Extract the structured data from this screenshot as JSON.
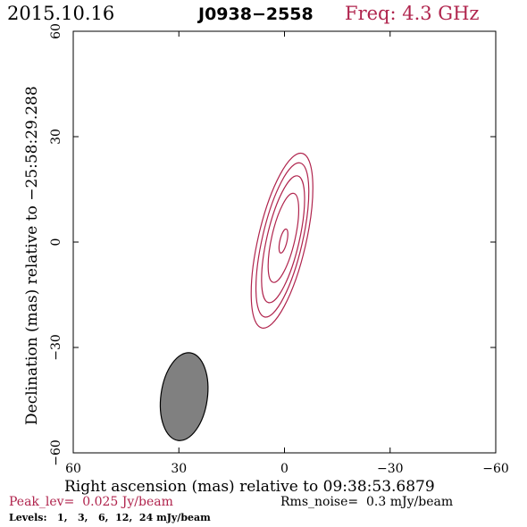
{
  "header": {
    "date": "2015.10.16",
    "source": "J0938−2558",
    "freq": "Freq: 4.3 GHz"
  },
  "footer": {
    "peak": "Peak_lev=  0.025 Jy/beam",
    "rms": "Rms_noise=  0.3 mJy/beam",
    "levels": "Levels:   1,   3,   6,  12,  24 mJy/beam"
  },
  "colors": {
    "contour": "#b0244d",
    "beam_fill": "#808080",
    "axis": "#000000",
    "freq_text": "#b0244d",
    "peak_text": "#b0244d"
  },
  "chart_data": {
    "type": "contour",
    "xlabel": "Right ascension (mas) relative to 09:38:53.6879",
    "ylabel": "Declination (mas) relative to −25:58:29.288",
    "xlim": [
      60,
      -60
    ],
    "ylim": [
      -60,
      60
    ],
    "x_ticks": [
      60,
      30,
      0,
      -30,
      -60
    ],
    "x_tick_labels": [
      "60",
      "30",
      "0",
      "−30",
      "−60"
    ],
    "y_ticks": [
      -60,
      -30,
      0,
      30,
      60
    ],
    "y_tick_labels": [
      "−60",
      "−30",
      "0",
      "30",
      "60"
    ],
    "levels_mJy": [
      1,
      3,
      6,
      12,
      24
    ],
    "peak_Jy_per_beam": 0.025,
    "rms_mJy_per_beam": 0.3,
    "contours": [
      {
        "level": 1,
        "cx": 0.7,
        "cy": 0.4,
        "rx": 6.8,
        "ry": 25.5,
        "angle_deg": 13
      },
      {
        "level": 3,
        "cx": 0.6,
        "cy": 0.6,
        "rx": 5.7,
        "ry": 22.5,
        "angle_deg": 13
      },
      {
        "level": 6,
        "cx": 0.4,
        "cy": 0.8,
        "rx": 4.6,
        "ry": 18.5,
        "angle_deg": 13
      },
      {
        "level": 12,
        "cx": 0.3,
        "cy": 1.2,
        "rx": 3.3,
        "ry": 13.0,
        "angle_deg": 13
      },
      {
        "level": 24,
        "cx": 0.3,
        "cy": 0.3,
        "rx": 1.0,
        "ry": 3.5,
        "angle_deg": 13
      }
    ],
    "beam": {
      "cx": 28.5,
      "cy": -44.0,
      "rx": 6.6,
      "ry": 12.6,
      "angle_deg": 8
    }
  }
}
